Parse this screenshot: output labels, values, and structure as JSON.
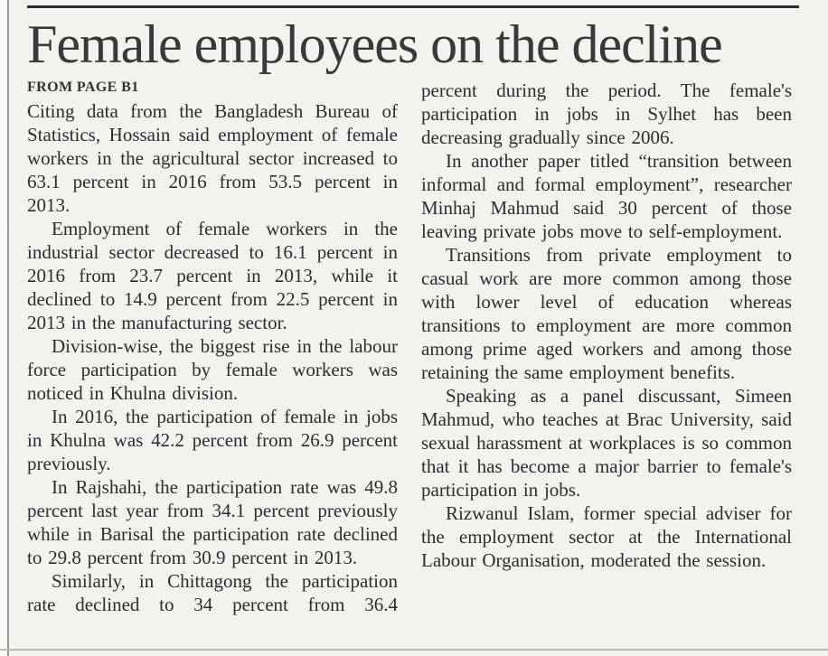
{
  "article": {
    "headline": "Female employees on the decline",
    "continuation_notice": "FROM PAGE B1",
    "columns": {
      "left": [
        "Citing data from the Bangladesh Bureau of Statistics, Hossain said employment of female workers in the agricultural sector increased to 63.1 percent in 2016 from 53.5 percent in 2013.",
        "Employment of female workers in the industrial sector decreased to 16.1 percent in 2016 from 23.7 percent in 2013, while it declined to 14.9 percent from 22.5 percent in 2013 in the manufacturing sector.",
        "Division-wise, the biggest rise in the labour force participation by female workers was noticed in Khulna division.",
        "In 2016, the participation of female in jobs in Khulna was 42.2 percent from 26.9 percent previously.",
        "In Rajshahi, the participation rate was 49.8 percent last year from 34.1 percent previously while in Barisal the participation rate declined to 29.8 percent from 30.9 percent in 2013.",
        "Similarly, in Chittagong the participation rate declined to 34 percent from 36.4"
      ],
      "right": [
        "percent during the period. The female's participation in jobs in Sylhet has been decreasing gradually since 2006.",
        "In another paper titled “transition between informal and formal employment”, researcher Minhaj Mahmud said 30 percent of those leaving private jobs move to self-employment.",
        "Transitions from private employment to casual work are more common among those with lower level of education whereas transitions to employment are more common among prime aged workers and among those retaining the same employment benefits.",
        "Speaking as a panel discussant, Simeen Mahmud, who teaches at Brac University, said sexual harassment at workplaces is so common that it has become a major barrier to female's participation in jobs.",
        "Rizwanul Islam, former special adviser for the employment sector at the International Labour Organisation, moderated the session."
      ]
    },
    "key_figures": {
      "agriculture_2016_pct": 63.1,
      "agriculture_2013_pct": 53.5,
      "industry_2016_pct": 16.1,
      "industry_2013_pct": 23.7,
      "manufacturing_2016_pct": 14.9,
      "manufacturing_2013_pct": 22.5,
      "khulna_2016_pct": 42.2,
      "khulna_prev_pct": 26.9,
      "rajshahi_lastyear_pct": 49.8,
      "rajshahi_prev_pct": 34.1,
      "barisal_2016_pct": 29.8,
      "barisal_2013_pct": 30.9,
      "chittagong_2016_pct": 34,
      "chittagong_prev_pct": 36.4,
      "private_to_self_employment_pct": 30
    },
    "colors": {
      "paper_background": "#f3f2ef",
      "body_text": "#2e2d2b",
      "headline_text": "#3a3937",
      "top_rule": "#2c2b29",
      "bottom_rule": "#bcbab5",
      "edge_rule": "#9a9893"
    }
  }
}
